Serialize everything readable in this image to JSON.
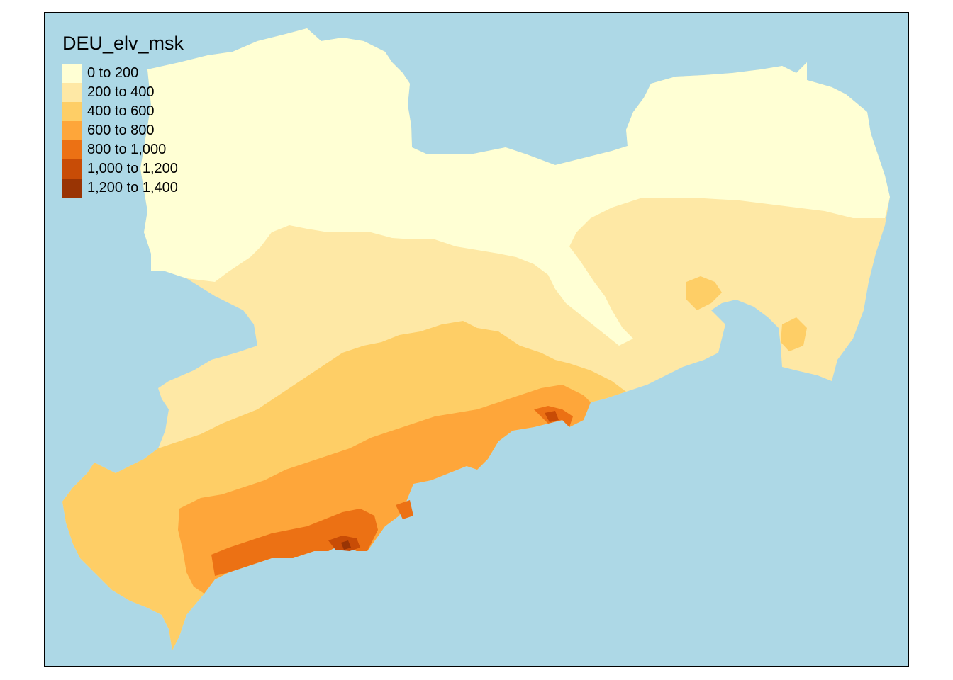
{
  "legend": {
    "title": "DEU_elv_msk",
    "classes": [
      {
        "label": "0 to 200",
        "color": "#ffffd4"
      },
      {
        "label": "200 to 400",
        "color": "#fee8a5"
      },
      {
        "label": "400 to 600",
        "color": "#fece66"
      },
      {
        "label": "600 to 800",
        "color": "#fea63a"
      },
      {
        "label": "800 to 1,000",
        "color": "#ec7114"
      },
      {
        "label": "1,000 to 1,200",
        "color": "#c84c06"
      },
      {
        "label": "1,200 to 1,400",
        "color": "#993404"
      }
    ]
  },
  "colors": {
    "background": "#add8e6",
    "frame": "#000000"
  }
}
